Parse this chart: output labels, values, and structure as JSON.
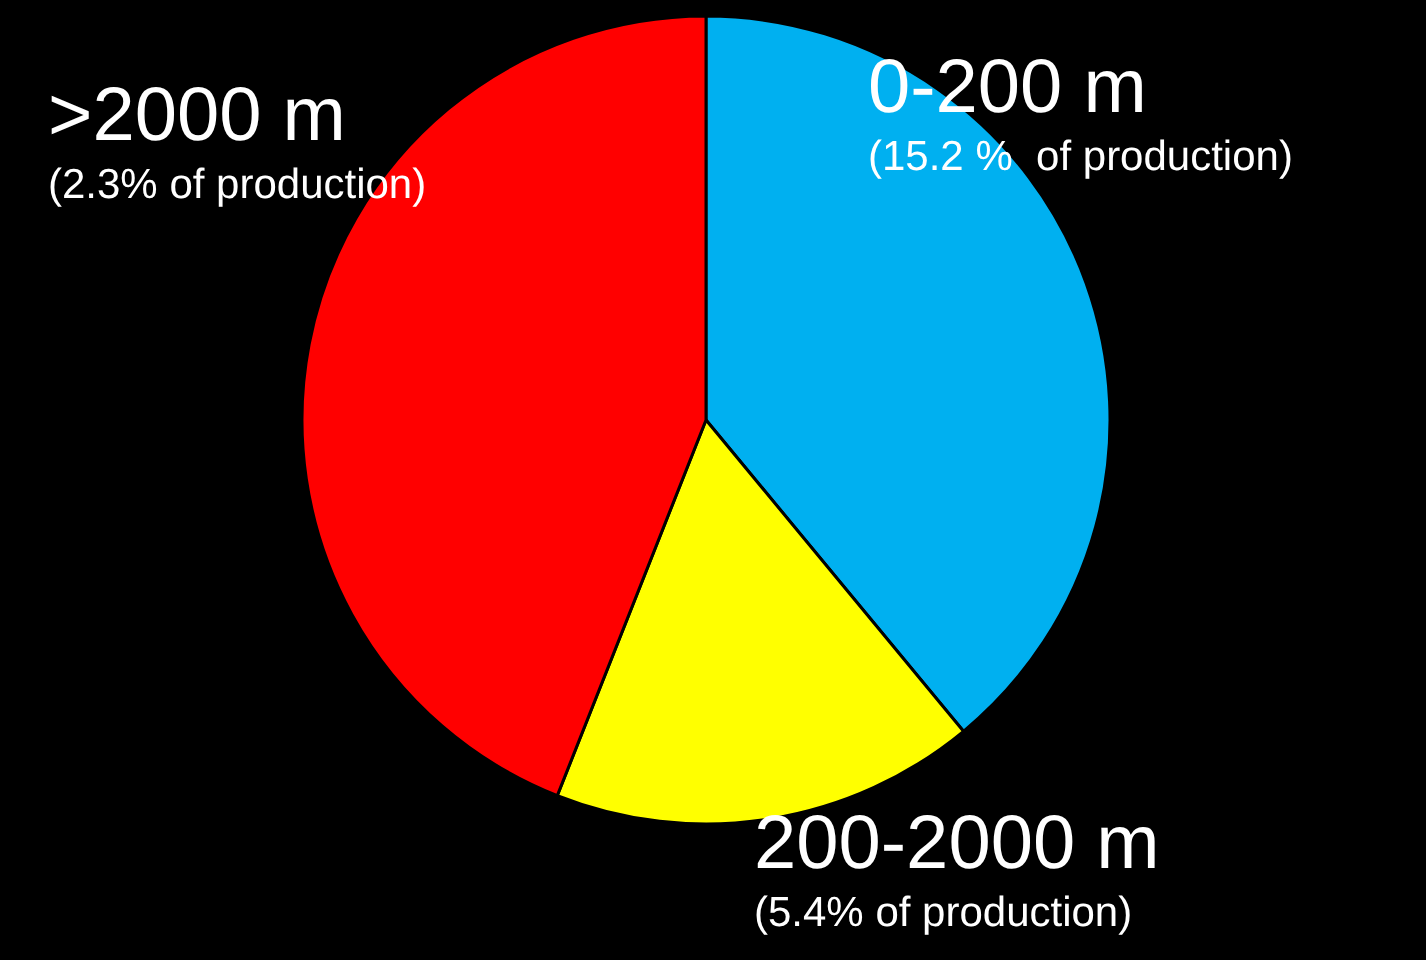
{
  "chart_data": {
    "type": "pie",
    "categories": [
      "0-200 m",
      "200-2000 m",
      ">2000 m"
    ],
    "values": [
      39,
      17,
      44
    ],
    "colors": [
      "#00b0f0",
      "#ffff00",
      "#ff0000"
    ],
    "annotations": [
      "(15.2 %  of production)",
      "(5.4% of production)",
      "(2.3% of production)"
    ]
  }
}
